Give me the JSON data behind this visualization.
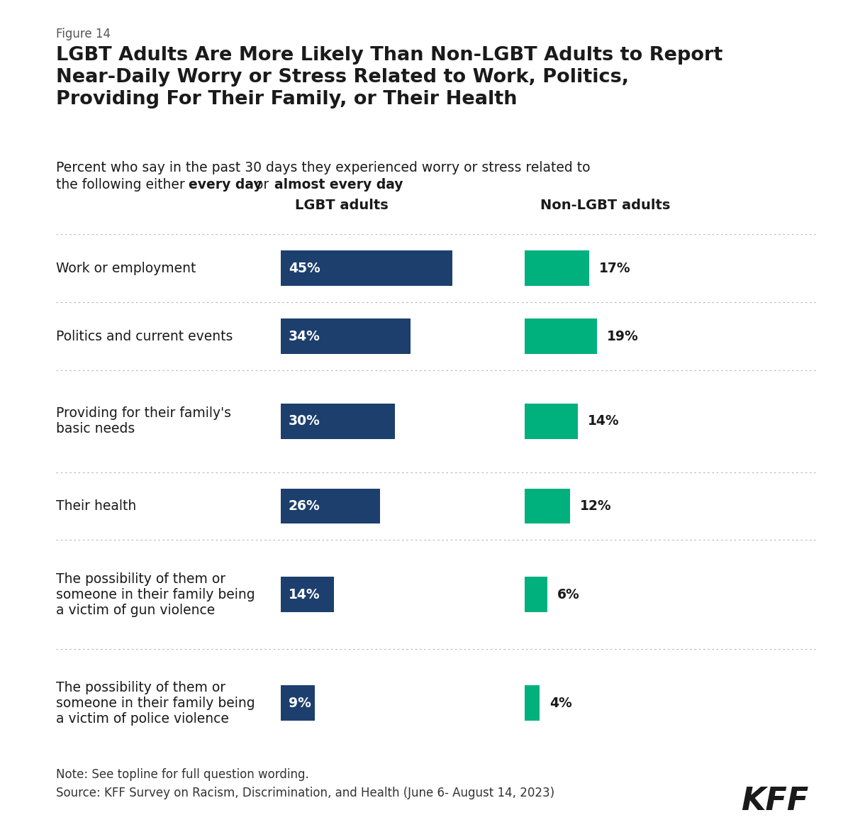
{
  "figure_label": "Figure 14",
  "title": "LGBT Adults Are More Likely Than Non-LGBT Adults to Report\nNear-Daily Worry or Stress Related to Work, Politics,\nProviding For Their Family, or Their Health",
  "subtitle_pre": "Percent who say in the past 30 days they experienced worry or stress related to\nthe following either ",
  "subtitle_bold1": "every day",
  "subtitle_mid": " or ",
  "subtitle_bold2": "almost every day",
  "subtitle_end": ":",
  "col1_header": "LGBT adults",
  "col2_header": "Non-LGBT adults",
  "categories": [
    "Work or employment",
    "Politics and current events",
    "Providing for their family's\nbasic needs",
    "Their health",
    "The possibility of them or\nsomeone in their family being\na victim of gun violence",
    "The possibility of them or\nsomeone in their family being\na victim of police violence"
  ],
  "lgbt_values": [
    45,
    34,
    30,
    26,
    14,
    9
  ],
  "non_lgbt_values": [
    17,
    19,
    14,
    12,
    6,
    4
  ],
  "lgbt_color": "#1c3f6e",
  "non_lgbt_color": "#00b07d",
  "text_color": "#1a1a1a",
  "bg_color": "#ffffff",
  "note_text": "Note: See topline for full question wording.",
  "source_text": "Source: KFF Survey on Racism, Discrimination, and Health (June 6- August 14, 2023)",
  "kff_text": "KFF",
  "fig_label_color": "#555555",
  "separator_color": "#bbbbbb"
}
